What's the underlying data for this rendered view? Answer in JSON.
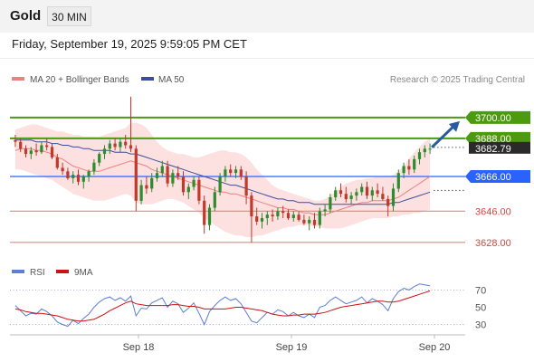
{
  "header": {
    "instrument": "Gold",
    "timeframe": "30 MIN",
    "timestamp": "Friday, September 19, 2025 9:59:05 PM CET"
  },
  "colors": {
    "bull_candle": "#2e8b2e",
    "bear_candle": "#c0392b",
    "support_line": "#f08080",
    "pivot_line": "#2962ff",
    "target_line": "#4c9a0e",
    "bollinger_fill": "#fde0e0",
    "ma20": "#f08080",
    "ma50": "#3a4f9a",
    "arrow": "#2a5aa0",
    "rsi": "#5b7fd4",
    "rsi_ma": "#cc1111"
  },
  "chart_data": [
    {
      "type": "candlestick",
      "title": "",
      "legend": [
        "MA 20 + Bollinger Bands",
        "MA 50"
      ],
      "source": "Research © 2025 Trading Central",
      "x_labels": [
        "Sep 18",
        "Sep 19",
        "Sep 20"
      ],
      "ylim": [
        3618,
        3714
      ],
      "last_price": "3682.79",
      "levels": [
        {
          "value": 3700,
          "label": "3700.00",
          "kind": "target"
        },
        {
          "value": 3688,
          "label": "3688.00",
          "kind": "target"
        },
        {
          "value": 3666,
          "label": "3666.00",
          "kind": "pivot"
        },
        {
          "value": 3646,
          "label": "3646.00",
          "kind": "support"
        },
        {
          "value": 3628,
          "label": "3628.00",
          "kind": "support"
        }
      ],
      "candles": [
        [
          3687,
          3690,
          3683,
          3686
        ],
        [
          3686,
          3688,
          3680,
          3682
        ],
        [
          3682,
          3684,
          3677,
          3679
        ],
        [
          3679,
          3683,
          3676,
          3681
        ],
        [
          3681,
          3685,
          3678,
          3680
        ],
        [
          3680,
          3686,
          3679,
          3684
        ],
        [
          3684,
          3688,
          3681,
          3683
        ],
        [
          3683,
          3685,
          3676,
          3677
        ],
        [
          3677,
          3679,
          3670,
          3671
        ],
        [
          3671,
          3674,
          3667,
          3669
        ],
        [
          3669,
          3671,
          3664,
          3665
        ],
        [
          3665,
          3669,
          3662,
          3667
        ],
        [
          3667,
          3670,
          3661,
          3663
        ],
        [
          3663,
          3667,
          3659,
          3666
        ],
        [
          3666,
          3670,
          3663,
          3669
        ],
        [
          3669,
          3676,
          3667,
          3674
        ],
        [
          3674,
          3680,
          3672,
          3679
        ],
        [
          3679,
          3684,
          3676,
          3682
        ],
        [
          3682,
          3687,
          3679,
          3685
        ],
        [
          3685,
          3688,
          3681,
          3683
        ],
        [
          3683,
          3688,
          3680,
          3686
        ],
        [
          3686,
          3690,
          3682,
          3684
        ],
        [
          3684,
          3712,
          3680,
          3682
        ],
        [
          3682,
          3684,
          3646,
          3652
        ],
        [
          3652,
          3664,
          3650,
          3661
        ],
        [
          3661,
          3666,
          3656,
          3659
        ],
        [
          3659,
          3668,
          3657,
          3665
        ],
        [
          3665,
          3671,
          3663,
          3668
        ],
        [
          3668,
          3675,
          3666,
          3672
        ],
        [
          3672,
          3675,
          3660,
          3662
        ],
        [
          3662,
          3670,
          3660,
          3668
        ],
        [
          3668,
          3672,
          3664,
          3666
        ],
        [
          3666,
          3669,
          3655,
          3657
        ],
        [
          3657,
          3662,
          3653,
          3660
        ],
        [
          3660,
          3666,
          3658,
          3664
        ],
        [
          3664,
          3666,
          3650,
          3652
        ],
        [
          3652,
          3655,
          3633,
          3638
        ],
        [
          3638,
          3650,
          3635,
          3648
        ],
        [
          3648,
          3660,
          3646,
          3657
        ],
        [
          3657,
          3668,
          3655,
          3666
        ],
        [
          3666,
          3672,
          3663,
          3670
        ],
        [
          3670,
          3673,
          3666,
          3668
        ],
        [
          3668,
          3672,
          3665,
          3670
        ],
        [
          3670,
          3672,
          3664,
          3666
        ],
        [
          3666,
          3669,
          3650,
          3655
        ],
        [
          3655,
          3657,
          3628,
          3643
        ],
        [
          3643,
          3648,
          3638,
          3640
        ],
        [
          3640,
          3645,
          3636,
          3642
        ],
        [
          3642,
          3646,
          3638,
          3644
        ],
        [
          3644,
          3647,
          3640,
          3643
        ],
        [
          3643,
          3648,
          3641,
          3646
        ],
        [
          3646,
          3649,
          3642,
          3645
        ],
        [
          3645,
          3647,
          3641,
          3642
        ],
        [
          3642,
          3646,
          3640,
          3644
        ],
        [
          3644,
          3646,
          3640,
          3641
        ],
        [
          3641,
          3644,
          3638,
          3639
        ],
        [
          3639,
          3643,
          3635,
          3641
        ],
        [
          3641,
          3645,
          3636,
          3638
        ],
        [
          3638,
          3648,
          3636,
          3646
        ],
        [
          3646,
          3650,
          3643,
          3647
        ],
        [
          3647,
          3656,
          3645,
          3654
        ],
        [
          3654,
          3660,
          3652,
          3658
        ],
        [
          3658,
          3662,
          3654,
          3656
        ],
        [
          3656,
          3660,
          3651,
          3653
        ],
        [
          3653,
          3657,
          3650,
          3655
        ],
        [
          3655,
          3659,
          3652,
          3657
        ],
        [
          3657,
          3662,
          3655,
          3660
        ],
        [
          3660,
          3663,
          3653,
          3655
        ],
        [
          3655,
          3660,
          3652,
          3658
        ],
        [
          3658,
          3662,
          3654,
          3656
        ],
        [
          3656,
          3660,
          3652,
          3653
        ],
        [
          3653,
          3655,
          3643,
          3649
        ],
        [
          3649,
          3662,
          3646,
          3659
        ],
        [
          3659,
          3670,
          3657,
          3668
        ],
        [
          3668,
          3674,
          3665,
          3672
        ],
        [
          3672,
          3676,
          3667,
          3670
        ],
        [
          3670,
          3678,
          3668,
          3676
        ],
        [
          3676,
          3682,
          3673,
          3680
        ],
        [
          3680,
          3684,
          3677,
          3682
        ],
        [
          3682,
          3685,
          3679,
          3682
        ]
      ],
      "ma20": [
        3681,
        3682,
        3682,
        3682,
        3681,
        3681,
        3680,
        3679,
        3677,
        3676,
        3674,
        3672,
        3671,
        3670,
        3669,
        3669,
        3669,
        3670,
        3671,
        3672,
        3673,
        3674,
        3675,
        3674,
        3673,
        3672,
        3670,
        3669,
        3668,
        3667,
        3666,
        3665,
        3664,
        3663,
        3662,
        3661,
        3660,
        3659,
        3658,
        3657,
        3657,
        3656,
        3656,
        3655,
        3654,
        3653,
        3652,
        3651,
        3650,
        3649,
        3648,
        3648,
        3647,
        3647,
        3646,
        3645,
        3645,
        3644,
        3644,
        3644,
        3645,
        3646,
        3647,
        3648,
        3649,
        3650,
        3651,
        3651,
        3652,
        3652,
        3652,
        3652,
        3653,
        3654,
        3656,
        3658,
        3660,
        3662,
        3664,
        3666
      ],
      "bb_upper": [
        3693,
        3694,
        3695,
        3696,
        3696,
        3695,
        3694,
        3693,
        3692,
        3692,
        3691,
        3690,
        3690,
        3689,
        3689,
        3689,
        3689,
        3690,
        3691,
        3692,
        3693,
        3694,
        3697,
        3697,
        3696,
        3694,
        3690,
        3686,
        3683,
        3681,
        3680,
        3679,
        3679,
        3678,
        3677,
        3677,
        3678,
        3679,
        3680,
        3681,
        3681,
        3680,
        3680,
        3679,
        3677,
        3674,
        3670,
        3667,
        3664,
        3661,
        3659,
        3658,
        3657,
        3656,
        3655,
        3654,
        3653,
        3652,
        3652,
        3653,
        3655,
        3657,
        3660,
        3662,
        3663,
        3664,
        3664,
        3665,
        3665,
        3666,
        3666,
        3666,
        3667,
        3669,
        3672,
        3676,
        3680,
        3683,
        3686,
        3688
      ],
      "bb_lower": [
        3670,
        3670,
        3669,
        3668,
        3667,
        3666,
        3665,
        3664,
        3662,
        3660,
        3658,
        3656,
        3655,
        3654,
        3653,
        3652,
        3652,
        3652,
        3653,
        3654,
        3655,
        3656,
        3655,
        3651,
        3650,
        3650,
        3650,
        3651,
        3652,
        3653,
        3653,
        3652,
        3651,
        3649,
        3647,
        3645,
        3642,
        3640,
        3638,
        3636,
        3634,
        3633,
        3632,
        3632,
        3631,
        3631,
        3632,
        3632,
        3633,
        3634,
        3635,
        3636,
        3637,
        3637,
        3638,
        3638,
        3638,
        3637,
        3637,
        3636,
        3636,
        3636,
        3636,
        3637,
        3638,
        3639,
        3640,
        3641,
        3642,
        3642,
        3642,
        3642,
        3643,
        3643,
        3644,
        3644,
        3645,
        3645,
        3646,
        3647
      ],
      "ma50": [
        3687,
        3687,
        3687,
        3687,
        3686,
        3686,
        3686,
        3685,
        3685,
        3684,
        3684,
        3683,
        3683,
        3682,
        3682,
        3681,
        3681,
        3681,
        3681,
        3680,
        3680,
        3680,
        3679,
        3679,
        3678,
        3677,
        3676,
        3675,
        3674,
        3673,
        3672,
        3671,
        3670,
        3669,
        3668,
        3667,
        3666,
        3665,
        3664,
        3663,
        3662,
        3661,
        3661,
        3660,
        3659,
        3658,
        3657,
        3656,
        3655,
        3654,
        3653,
        3653,
        3652,
        3652,
        3651,
        3651,
        3651,
        3650,
        3650,
        3650,
        3650,
        3650,
        3650,
        3650,
        3650,
        3650,
        3650,
        3650,
        3650,
        3650,
        3650,
        3650,
        3651,
        3651,
        3652,
        3653,
        3654,
        3655,
        3656,
        3657
      ],
      "ma50_projection": 3658,
      "ma20_projection": 3666,
      "forecast": {
        "from": 3682.79,
        "to": 3700
      }
    },
    {
      "type": "line",
      "title": "",
      "legend": [
        "RSI",
        "9MA"
      ],
      "ylim": [
        18,
        82
      ],
      "y_ticks": [
        "70",
        "50",
        "30"
      ],
      "guide_levels": [
        70,
        30
      ],
      "rsi": [
        52,
        46,
        40,
        43,
        42,
        48,
        45,
        40,
        33,
        30,
        28,
        35,
        31,
        37,
        42,
        50,
        56,
        60,
        62,
        58,
        61,
        57,
        63,
        40,
        49,
        48,
        55,
        58,
        61,
        50,
        57,
        54,
        44,
        49,
        55,
        43,
        30,
        45,
        52,
        58,
        62,
        58,
        60,
        54,
        44,
        34,
        32,
        38,
        44,
        42,
        47,
        45,
        40,
        44,
        40,
        38,
        42,
        38,
        50,
        52,
        58,
        62,
        58,
        54,
        56,
        58,
        62,
        55,
        60,
        57,
        53,
        46,
        60,
        68,
        72,
        70,
        74,
        77,
        76,
        75
      ],
      "rsi_ma": [
        48,
        47,
        45,
        44,
        43,
        43,
        42,
        41,
        40,
        38,
        36,
        35,
        34,
        34,
        35,
        36,
        39,
        42,
        46,
        49,
        52,
        55,
        57,
        54,
        53,
        52,
        52,
        52,
        52,
        52,
        53,
        53,
        52,
        51,
        51,
        50,
        48,
        48,
        48,
        48,
        48,
        49,
        50,
        50,
        49,
        48,
        47,
        46,
        44,
        42,
        41,
        40,
        40,
        41,
        41,
        42,
        42,
        42,
        43,
        44,
        46,
        48,
        50,
        51,
        52,
        53,
        54,
        55,
        56,
        57,
        57,
        56,
        56,
        57,
        59,
        61,
        63,
        65,
        67,
        69
      ]
    }
  ]
}
